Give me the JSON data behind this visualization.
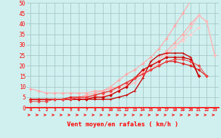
{
  "xlabel": "Vent moyen/en rafales ( km/h )",
  "bg_color": "#cff0ef",
  "grid_color": "#9bbfbf",
  "x": [
    0,
    1,
    2,
    3,
    4,
    5,
    6,
    7,
    8,
    9,
    10,
    11,
    12,
    13,
    14,
    15,
    16,
    17,
    18,
    19,
    20,
    21,
    22,
    23
  ],
  "series": [
    {
      "color": "#ffaaaa",
      "marker": "D",
      "markersize": 2.0,
      "linewidth": 0.9,
      "y": [
        4,
        4,
        4,
        4,
        4,
        5,
        5,
        6,
        7,
        8,
        10,
        13,
        16,
        18,
        21,
        24,
        28,
        33,
        39,
        45,
        51,
        null,
        null,
        null
      ]
    },
    {
      "color": "#ffaaaa",
      "marker": "D",
      "markersize": 2.0,
      "linewidth": 0.9,
      "y": [
        9,
        8,
        7,
        7,
        7,
        7,
        7,
        7,
        8,
        8,
        9,
        10,
        12,
        14,
        17,
        20,
        23,
        27,
        31,
        35,
        40,
        44,
        41,
        25
      ]
    },
    {
      "color": "#ffbbbb",
      "marker": "D",
      "markersize": 2.0,
      "linewidth": 0.8,
      "y": [
        4,
        4,
        4,
        4,
        4,
        4,
        4,
        4,
        5,
        5,
        6,
        8,
        10,
        12,
        15,
        18,
        21,
        25,
        29,
        33,
        38,
        44,
        41,
        25
      ]
    },
    {
      "color": "#ffcccc",
      "marker": "D",
      "markersize": 2.0,
      "linewidth": 0.8,
      "y": [
        4,
        4,
        4,
        4,
        4,
        4,
        4,
        5,
        5,
        6,
        7,
        9,
        11,
        14,
        17,
        20,
        23,
        26,
        29,
        32,
        35,
        38,
        null,
        null
      ]
    },
    {
      "color": "#cc0000",
      "marker": "+",
      "markersize": 3.5,
      "linewidth": 1.0,
      "y": [
        4,
        4,
        4,
        4,
        4,
        4,
        4,
        4,
        4,
        4,
        4,
        5,
        6,
        8,
        14,
        22,
        25,
        26,
        26,
        26,
        24,
        15,
        null,
        null
      ]
    },
    {
      "color": "#cc0000",
      "marker": "D",
      "markersize": 2.0,
      "linewidth": 1.0,
      "y": [
        4,
        4,
        4,
        4,
        4,
        4,
        4,
        4,
        5,
        5,
        6,
        8,
        10,
        14,
        18,
        20,
        22,
        24,
        24,
        24,
        23,
        15,
        null,
        null
      ]
    },
    {
      "color": "#dd2222",
      "marker": "D",
      "markersize": 2.0,
      "linewidth": 0.9,
      "y": [
        4,
        4,
        4,
        4,
        4,
        5,
        5,
        5,
        6,
        7,
        8,
        10,
        12,
        14,
        16,
        18,
        20,
        22,
        22,
        21,
        20,
        18,
        15,
        null
      ]
    },
    {
      "color": "#ee4444",
      "marker": "D",
      "markersize": 2.0,
      "linewidth": 0.8,
      "y": [
        3,
        3,
        3,
        4,
        4,
        4,
        5,
        5,
        6,
        7,
        8,
        10,
        12,
        14,
        16,
        18,
        20,
        22,
        23,
        23,
        22,
        20,
        15,
        null
      ]
    }
  ],
  "ylim": [
    0,
    50
  ],
  "xlim": [
    -0.5,
    23.5
  ],
  "yticks": [
    0,
    5,
    10,
    15,
    20,
    25,
    30,
    35,
    40,
    45,
    50
  ],
  "xticks": [
    0,
    1,
    2,
    3,
    4,
    5,
    6,
    7,
    8,
    9,
    10,
    11,
    12,
    13,
    14,
    15,
    16,
    17,
    18,
    19,
    20,
    21,
    22,
    23
  ]
}
